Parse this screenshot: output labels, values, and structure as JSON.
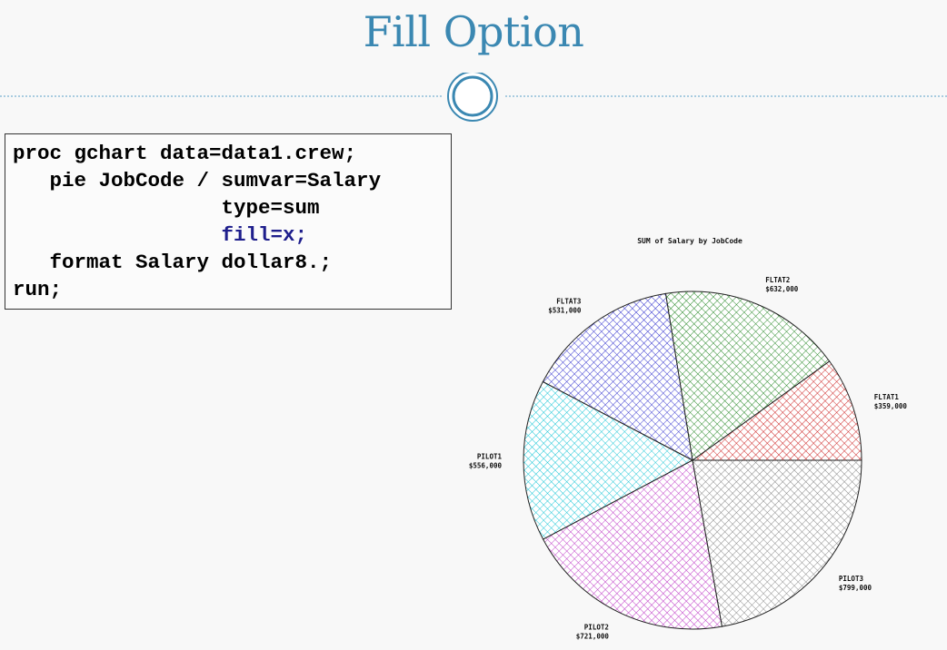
{
  "slide": {
    "title": "Fill Option",
    "title_color": "#3b88b2"
  },
  "code": {
    "lines": [
      "proc gchart data=data1.crew;",
      "   pie JobCode / sumvar=Salary",
      "                 type=sum",
      "                 fill=x;",
      "   format Salary dollar8.;",
      "run;"
    ],
    "highlight_color": "#1e1e8c"
  },
  "chart_data": {
    "type": "pie",
    "title": "SUM of Salary by JobCode",
    "fill_pattern": "crosshatch",
    "slices": [
      {
        "label": "FLTAT1",
        "value": 359000,
        "value_label": "$359,000",
        "color": "#d03030"
      },
      {
        "label": "FLTAT2",
        "value": 632000,
        "value_label": "$632,000",
        "color": "#2a8a2a"
      },
      {
        "label": "FLTAT3",
        "value": 531000,
        "value_label": "$531,000",
        "color": "#3a3ad0"
      },
      {
        "label": "PILOT1",
        "value": 556000,
        "value_label": "$556,000",
        "color": "#22c8d8"
      },
      {
        "label": "PILOT2",
        "value": 721000,
        "value_label": "$721,000",
        "color": "#c040c8"
      },
      {
        "label": "PILOT3",
        "value": 799000,
        "value_label": "$799,000",
        "color": "#8a8a8a"
      }
    ]
  }
}
